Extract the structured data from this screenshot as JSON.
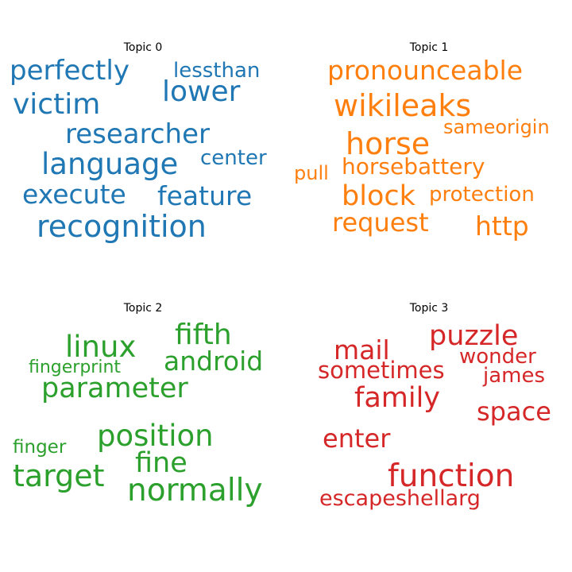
{
  "chart_data": [
    {
      "type": "wordcloud",
      "title": "Topic 0",
      "color": "#1f77b4",
      "words": [
        "perfectly",
        "lessthan",
        "lower",
        "victim",
        "researcher",
        "center",
        "language",
        "execute",
        "feature",
        "recognition"
      ]
    },
    {
      "type": "wordcloud",
      "title": "Topic 1",
      "color": "#ff7f0e",
      "words": [
        "pronounceable",
        "wikileaks",
        "sameorigin",
        "horse",
        "pull",
        "horsebattery",
        "block",
        "protection",
        "request",
        "http"
      ]
    },
    {
      "type": "wordcloud",
      "title": "Topic 2",
      "color": "#2ca02c",
      "words": [
        "fifth",
        "linux",
        "fingerprint",
        "android",
        "parameter",
        "position",
        "finger",
        "fine",
        "target",
        "normally"
      ]
    },
    {
      "type": "wordcloud",
      "title": "Topic 3",
      "color": "#d62728",
      "words": [
        "puzzle",
        "mail",
        "wonder",
        "sometimes",
        "james",
        "family",
        "space",
        "enter",
        "function",
        "escapeshellarg"
      ]
    }
  ]
}
